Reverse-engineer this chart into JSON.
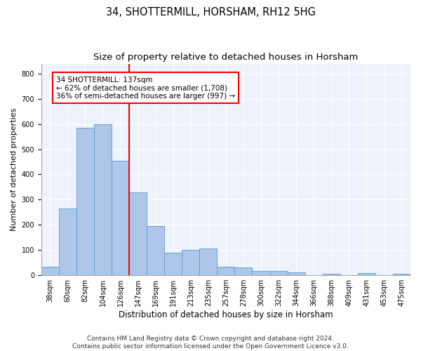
{
  "title1": "34, SHOTTERMILL, HORSHAM, RH12 5HG",
  "title2": "Size of property relative to detached houses in Horsham",
  "xlabel": "Distribution of detached houses by size in Horsham",
  "ylabel": "Number of detached properties",
  "footer1": "Contains HM Land Registry data © Crown copyright and database right 2024.",
  "footer2": "Contains public sector information licensed under the Open Government Licence v3.0.",
  "bin_labels": [
    "38sqm",
    "60sqm",
    "82sqm",
    "104sqm",
    "126sqm",
    "147sqm",
    "169sqm",
    "191sqm",
    "213sqm",
    "235sqm",
    "257sqm",
    "278sqm",
    "300sqm",
    "322sqm",
    "344sqm",
    "366sqm",
    "388sqm",
    "409sqm",
    "431sqm",
    "453sqm",
    "475sqm"
  ],
  "bar_heights": [
    35,
    265,
    585,
    600,
    455,
    330,
    195,
    90,
    100,
    105,
    35,
    32,
    17,
    17,
    12,
    0,
    5,
    0,
    8,
    0,
    7
  ],
  "bar_color": "#aec6e8",
  "bar_edge_color": "#5b9bd5",
  "vline_x_index": 4.5,
  "annotation_line1": "34 SHOTTERMILL: 137sqm",
  "annotation_line2": "← 62% of detached houses are smaller (1,708)",
  "annotation_line3": "36% of semi-detached houses are larger (997) →",
  "annotation_box_color": "white",
  "annotation_box_edge_color": "red",
  "vline_color": "red",
  "ylim": [
    0,
    840
  ],
  "yticks": [
    0,
    100,
    200,
    300,
    400,
    500,
    600,
    700,
    800
  ],
  "background_color": "#eef2fb",
  "grid_color": "#ffffff",
  "title1_fontsize": 10.5,
  "title2_fontsize": 9.5,
  "ylabel_fontsize": 8,
  "xlabel_fontsize": 8.5,
  "tick_fontsize": 7,
  "annotation_fontsize": 7.5,
  "footer_fontsize": 6.5
}
